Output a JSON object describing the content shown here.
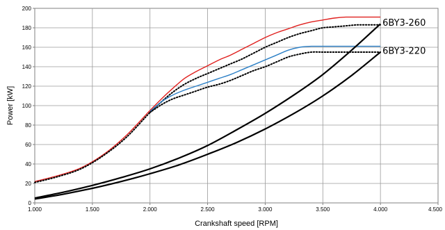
{
  "chart_data": {
    "type": "line",
    "xlabel": "Crankshaft speed [RPM]",
    "ylabel": "Power [kW]",
    "xlim": [
      1000,
      4500
    ],
    "ylim": [
      0,
      200
    ],
    "x_ticks": [
      1000,
      1500,
      2000,
      2500,
      3000,
      3500,
      4000,
      4500
    ],
    "x_tick_labels": [
      "1.000",
      "1.500",
      "2.000",
      "2.500",
      "3.000",
      "3.500",
      "4.000",
      "4.500"
    ],
    "y_ticks": [
      0,
      20,
      40,
      60,
      80,
      100,
      120,
      140,
      160,
      180,
      200
    ],
    "y_tick_labels": [
      "0",
      "20",
      "40",
      "60",
      "80",
      "100",
      "120",
      "140",
      "160",
      "180",
      "200"
    ],
    "grid": true,
    "annotations": [
      {
        "text": "6BY3-260",
        "x": 4000,
        "y": 185
      },
      {
        "text": "6BY3-220",
        "x": 4000,
        "y": 156
      }
    ],
    "series": [
      {
        "color": "#e0201e",
        "style": "solid",
        "x": [
          1000,
          1200,
          1400,
          1600,
          1800,
          2000,
          2100,
          2200,
          2300,
          2400,
          2500,
          2600,
          2700,
          2800,
          2900,
          3000,
          3100,
          3200,
          3300,
          3400,
          3500,
          3600,
          3700,
          3800,
          3900,
          4000
        ],
        "y": [
          22,
          28,
          36,
          50,
          70,
          95,
          107,
          118,
          128,
          135,
          141,
          147,
          152,
          158,
          164,
          170,
          175,
          179,
          183,
          186,
          188,
          190,
          191,
          191,
          191,
          191
        ]
      },
      {
        "color": "#000000",
        "style": "dotted",
        "x": [
          1000,
          1200,
          1400,
          1600,
          1800,
          2000,
          2100,
          2200,
          2300,
          2400,
          2500,
          2600,
          2700,
          2800,
          2900,
          3000,
          3100,
          3200,
          3300,
          3400,
          3500,
          3600,
          3700,
          3800,
          3900,
          4000
        ],
        "y": [
          21,
          27,
          35,
          49,
          68,
          93,
          104,
          114,
          122,
          128,
          133,
          138,
          143,
          148,
          154,
          160,
          165,
          170,
          174,
          177,
          180,
          181,
          182,
          183,
          183,
          183
        ]
      },
      {
        "color": "#2b7fc6",
        "style": "solid",
        "x": [
          2000,
          2100,
          2200,
          2300,
          2400,
          2500,
          2600,
          2700,
          2800,
          2900,
          3000,
          3100,
          3200,
          3300,
          3400,
          3500,
          3600,
          3700,
          3800,
          3900,
          4000
        ],
        "y": [
          94,
          104,
          111,
          116,
          120,
          124,
          128,
          132,
          137,
          142,
          147,
          152,
          157,
          160,
          161,
          161,
          161,
          161,
          161,
          161,
          161
        ]
      },
      {
        "color": "#000000",
        "style": "dotted",
        "x": [
          2000,
          2100,
          2200,
          2300,
          2400,
          2500,
          2600,
          2700,
          2800,
          2900,
          3000,
          3100,
          3200,
          3300,
          3400,
          3500,
          3600,
          3700,
          3800,
          3900,
          4000
        ],
        "y": [
          93,
          101,
          107,
          111,
          115,
          119,
          122,
          126,
          131,
          136,
          140,
          145,
          150,
          153,
          155,
          155,
          155,
          155,
          155,
          155,
          155
        ]
      },
      {
        "color": "#000000",
        "style": "solid-thick",
        "x": [
          1000,
          1250,
          1500,
          1750,
          2000,
          2250,
          2500,
          2750,
          3000,
          3250,
          3500,
          3750,
          4000
        ],
        "y": [
          5,
          11,
          18,
          26,
          35,
          46,
          59,
          75,
          92,
          111,
          132,
          157,
          184
        ]
      },
      {
        "color": "#000000",
        "style": "solid-thick",
        "x": [
          1000,
          1250,
          1500,
          1750,
          2000,
          2250,
          2500,
          2750,
          3000,
          3250,
          3500,
          3750,
          4000
        ],
        "y": [
          4,
          9,
          15,
          22,
          30,
          39,
          50,
          62,
          76,
          92,
          110,
          131,
          155
        ]
      }
    ]
  }
}
